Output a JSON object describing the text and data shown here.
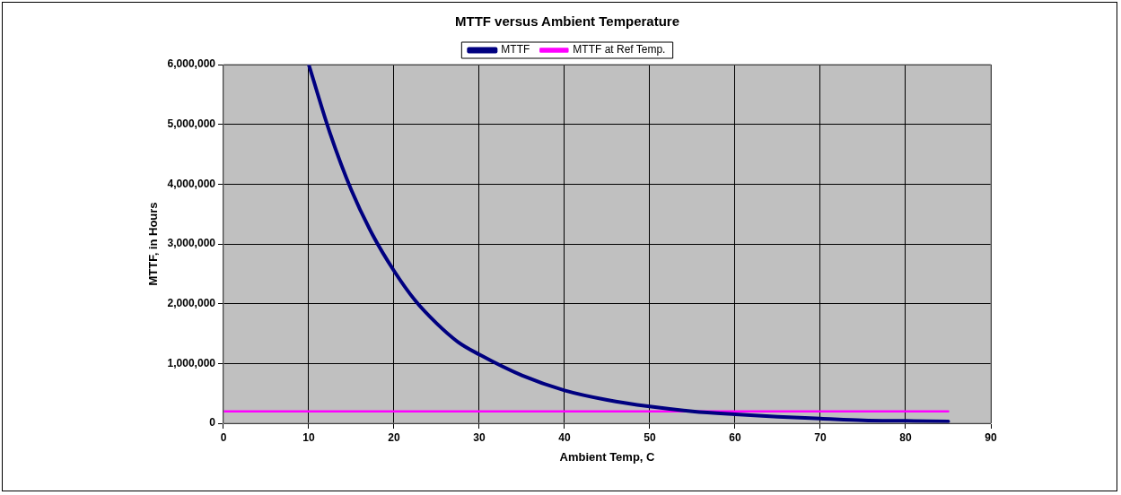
{
  "chart_data": {
    "type": "line",
    "title": "MTTF versus Ambient Temperature",
    "xlabel": "Ambient Temp, C",
    "ylabel": "MTTF, in Hours",
    "x": [
      10,
      12.5,
      15,
      17.5,
      20,
      22.5,
      25,
      27.5,
      30,
      35,
      40,
      45,
      50,
      55,
      60,
      65,
      70,
      75,
      80,
      85
    ],
    "series": [
      {
        "name": "MTTF",
        "color": "#000080",
        "values": [
          6000000,
          4850000,
          3900000,
          3150000,
          2550000,
          2050000,
          1670000,
          1360000,
          1150000,
          800000,
          550000,
          390000,
          280000,
          200000,
          150000,
          110000,
          80000,
          50000,
          40000,
          30000
        ]
      },
      {
        "name": "MTTF at Ref Temp.",
        "color": "#ff00ff",
        "x": [
          0,
          85
        ],
        "values": [
          200000,
          200000
        ]
      }
    ],
    "xlim": [
      0,
      90
    ],
    "xticks": [
      0,
      10,
      20,
      30,
      40,
      50,
      60,
      70,
      80,
      90
    ],
    "ylim": [
      0,
      6000000
    ],
    "yticks": [
      0,
      {
        "value": 1000000,
        "label": "1,000,000"
      },
      {
        "value": 2000000,
        "label": "2,000,000"
      },
      {
        "value": 3000000,
        "label": "3,000,000"
      },
      {
        "value": 4000000,
        "label": "4,000,000"
      },
      {
        "value": 5000000,
        "label": "5,000,000"
      },
      {
        "value": 6000000,
        "label": "6,000,000"
      }
    ],
    "grid": true,
    "legend": "top",
    "marker": "none",
    "line_style": "solid"
  }
}
